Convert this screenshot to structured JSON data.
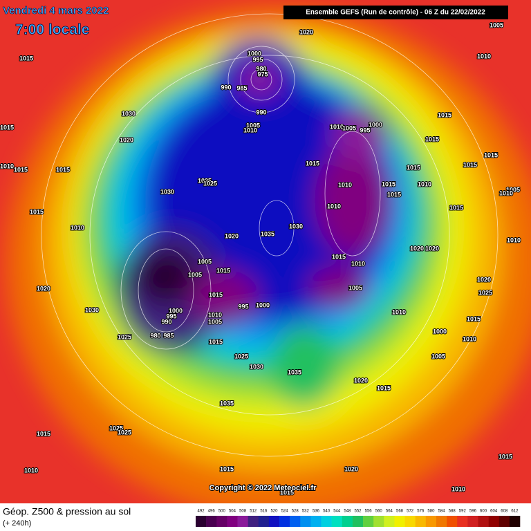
{
  "header": {
    "date": "Vendredi 4 mars 2022",
    "time": "7:00 locale",
    "run": "Ensemble GEFS  (Run de contrôle)  - 06 Z du 22/02/2022"
  },
  "map": {
    "copyright": "Copyright © 2022 Meteociel.fr",
    "isobar_labels": [
      "1020",
      "1005",
      "1015",
      "1010",
      "1000",
      "995",
      "980",
      "975",
      "990",
      "985",
      "990",
      "1030",
      "1005",
      "1010",
      "1010",
      "1005",
      "1000",
      "995",
      "1015",
      "1015",
      "1020",
      "1015",
      "1015",
      "1015",
      "1015",
      "1015",
      "1010",
      "1015",
      "1015",
      "1025",
      "1025",
      "1015",
      "1010",
      "1010",
      "1015",
      "1005",
      "1010",
      "1030",
      "1015",
      "1015",
      "1010",
      "1030",
      "1035",
      "1020",
      "1010",
      "1010",
      "1020",
      "1020",
      "1005",
      "1015",
      "1010",
      "1015",
      "1005",
      "1020",
      "1025",
      "1005",
      "1015",
      "1020",
      "1000",
      "995",
      "1000",
      "995",
      "1010",
      "1005",
      "1030",
      "1010",
      "1015",
      "990",
      "1000",
      "1010",
      "980",
      "985",
      "1025",
      "1015",
      "1025",
      "1005",
      "1030",
      "1035",
      "1020",
      "1015",
      "1035",
      "1025",
      "1025",
      "1015",
      "1015",
      "1010",
      "1015",
      "1020",
      "1015",
      "1010"
    ]
  },
  "legend": {
    "title": "Géop. Z500 & pression au sol",
    "lead": "(+ 240h)",
    "scale": [
      492,
      496,
      500,
      504,
      508,
      512,
      516,
      520,
      524,
      528,
      532,
      536,
      540,
      544,
      548,
      552,
      556,
      560,
      564,
      568,
      572,
      576,
      580,
      584,
      588,
      592,
      596,
      600,
      604,
      608,
      612
    ],
    "colors": [
      "#2a0030",
      "#4a0050",
      "#660066",
      "#800080",
      "#8a1a9a",
      "#402080",
      "#202090",
      "#1010c0",
      "#0030e0",
      "#0060f0",
      "#0090f0",
      "#00b0f0",
      "#00d0e0",
      "#00e0c0",
      "#00d090",
      "#20c060",
      "#60d040",
      "#a0e030",
      "#d0f020",
      "#f0f000",
      "#f8d800",
      "#f8b800",
      "#f89800",
      "#f07800",
      "#f05000",
      "#e83020",
      "#d02020",
      "#b01010",
      "#900000",
      "#600000",
      "#200000"
    ]
  }
}
